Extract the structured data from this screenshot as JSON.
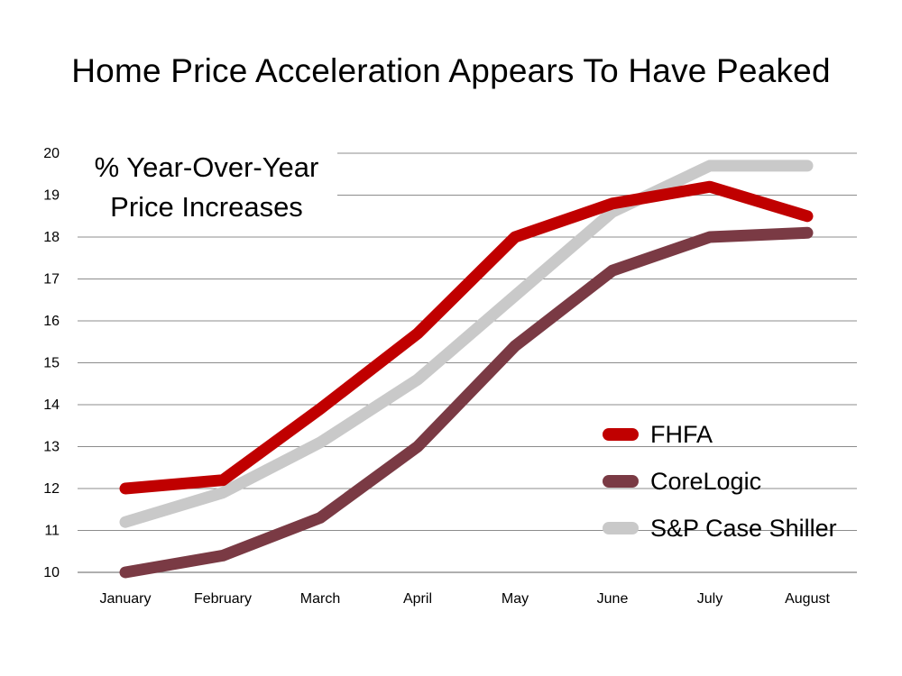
{
  "chart_data": {
    "type": "line",
    "title": "Home Price Acceleration Appears To Have Peaked",
    "annotation": [
      "% Year-Over-Year",
      "Price Increases"
    ],
    "xlabel": "",
    "ylabel": "",
    "categories": [
      "January",
      "February",
      "March",
      "April",
      "May",
      "June",
      "July",
      "August"
    ],
    "ylim": [
      10,
      20
    ],
    "yticks": [
      10,
      11,
      12,
      13,
      14,
      15,
      16,
      17,
      18,
      19,
      20
    ],
    "grid": "horizontal",
    "legend_position": "bottom-right",
    "series": [
      {
        "name": "FHFA",
        "color": "#c00000",
        "values": [
          12.0,
          12.2,
          13.9,
          15.7,
          18.0,
          18.8,
          19.2,
          18.5
        ]
      },
      {
        "name": "CoreLogic",
        "color": "#7a3a44",
        "values": [
          10.0,
          10.4,
          11.3,
          13.0,
          15.4,
          17.2,
          18.0,
          18.1
        ]
      },
      {
        "name": "S&P Case Shiller",
        "color": "#c9c9c9",
        "values": [
          11.2,
          11.9,
          13.1,
          14.6,
          16.6,
          18.6,
          19.7,
          19.7
        ]
      }
    ]
  }
}
